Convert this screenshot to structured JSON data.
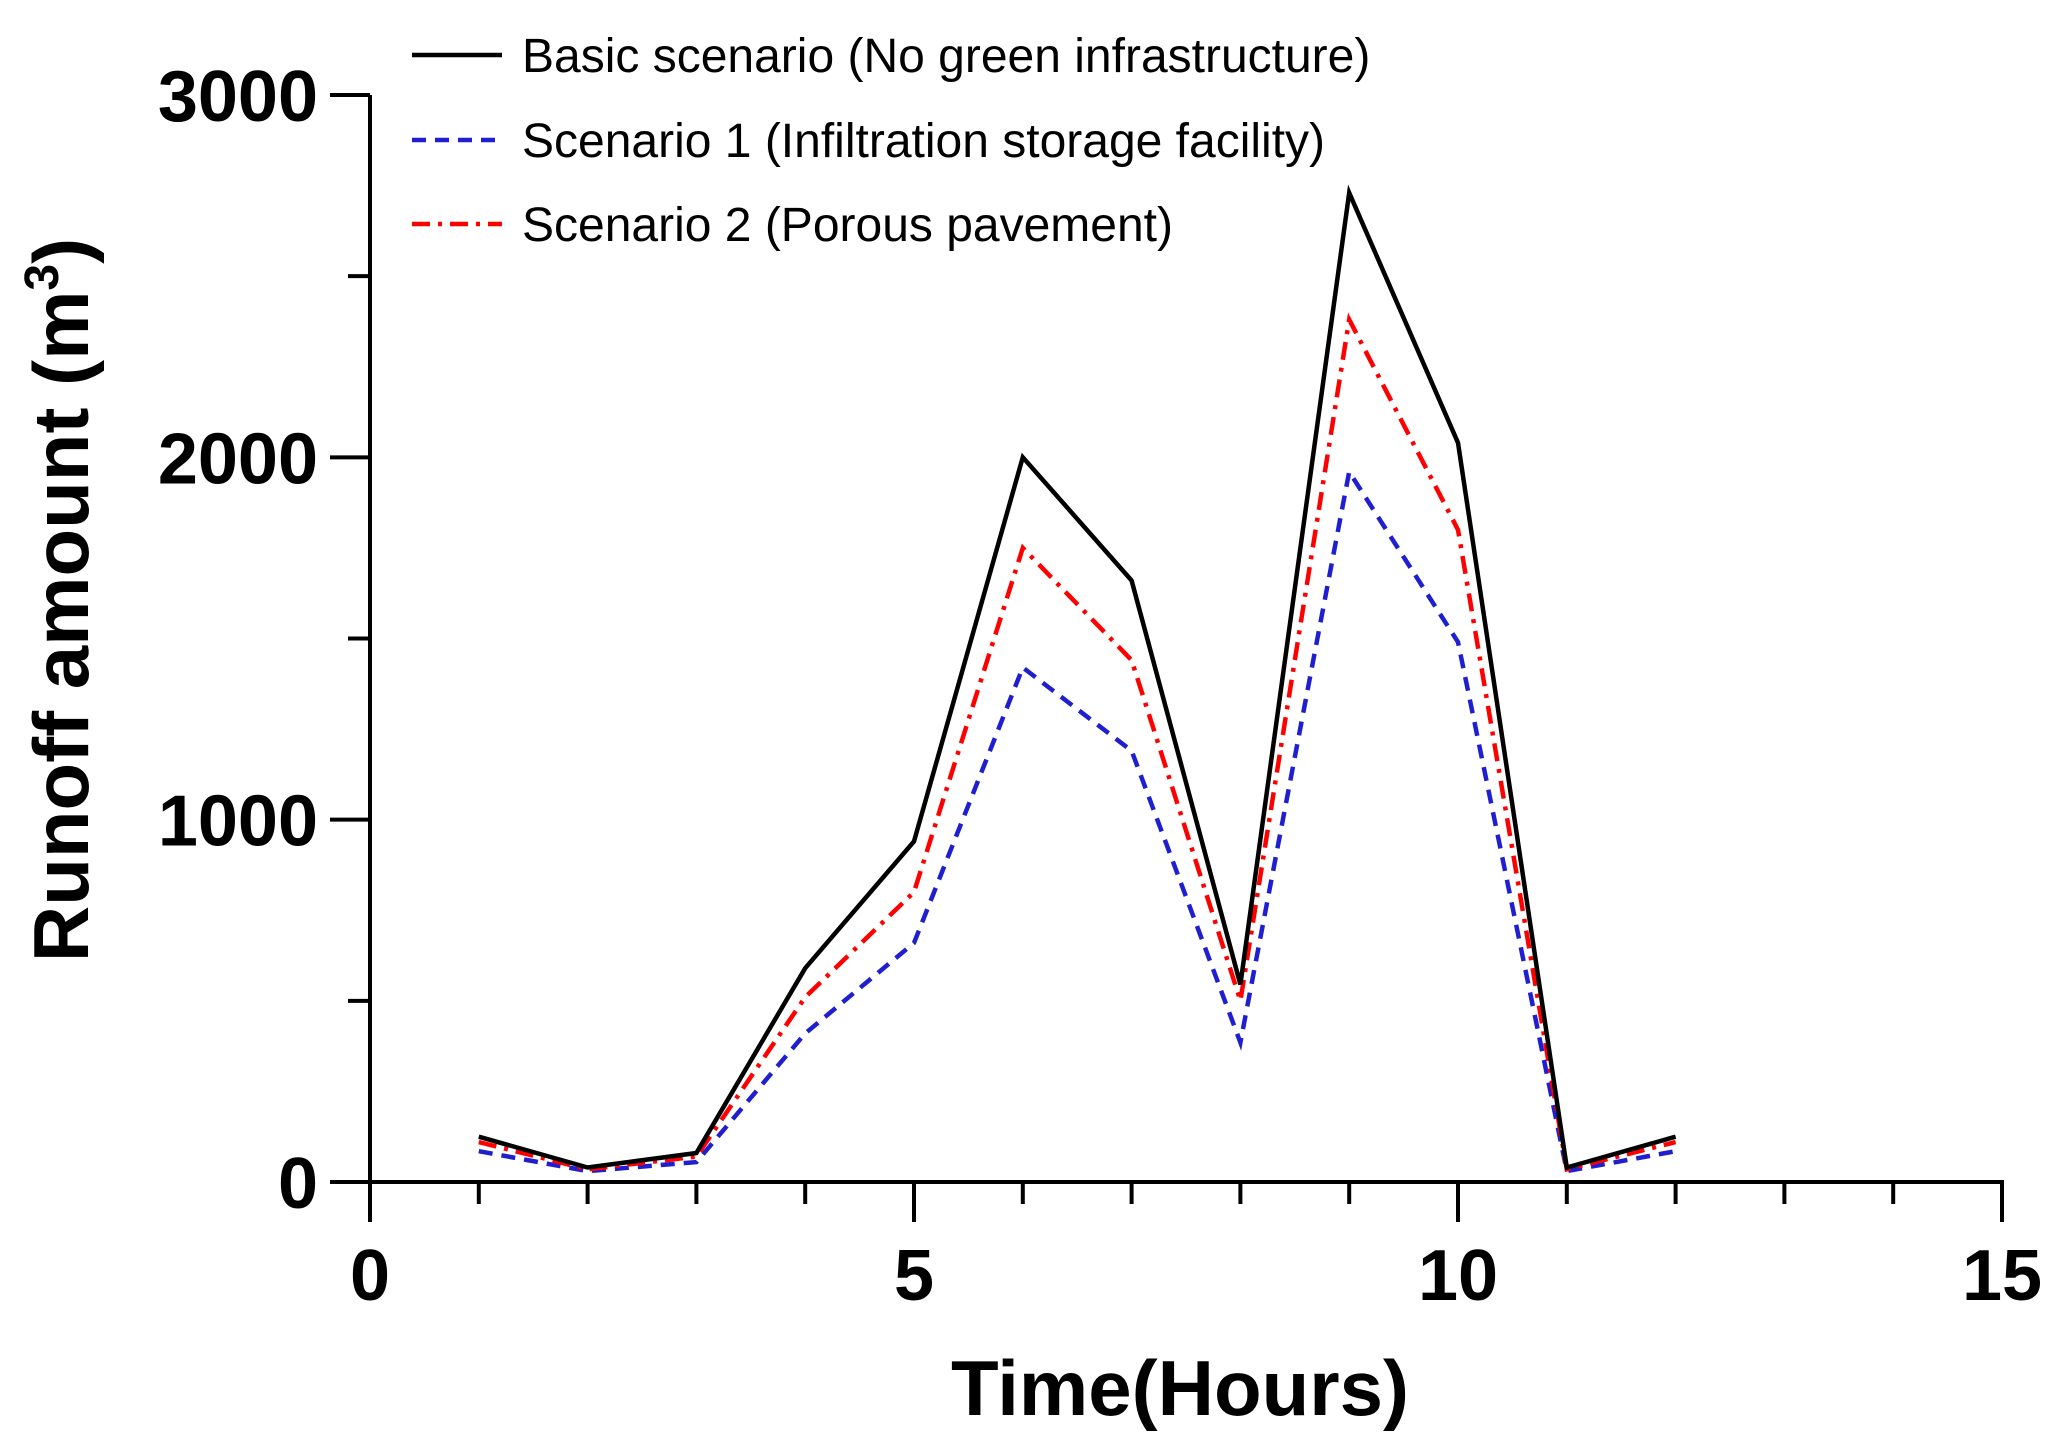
{
  "chart_data": {
    "type": "line",
    "title": "",
    "xlabel": "Time(Hours)",
    "ylabel_main": "Runoff amount (m",
    "ylabel_sup": "3",
    "ylabel_close": ")",
    "xlim": [
      0,
      15
    ],
    "ylim": [
      0,
      3000
    ],
    "xticks": [
      0,
      5,
      10,
      15
    ],
    "xtick_labels": [
      "0",
      "5",
      "10",
      "15"
    ],
    "yticks": [
      0,
      1000,
      2000,
      3000
    ],
    "ytick_labels": [
      "0",
      "1000",
      "2000",
      "3000"
    ],
    "grid": false,
    "legend_position": "top-left",
    "x": [
      1,
      2,
      3,
      4,
      5,
      6,
      7,
      8,
      9,
      10,
      11,
      12
    ],
    "series": [
      {
        "name": "Basic scenario (No green infrastructure)",
        "color": "#000000",
        "style": "solid",
        "values": [
          125,
          40,
          80,
          590,
          940,
          2000,
          1660,
          545,
          2730,
          2040,
          40,
          125
        ]
      },
      {
        "name": "Scenario 1 (Infiltration storage facility)",
        "color": "#1f1fd0",
        "style": "dashed",
        "values": [
          85,
          30,
          55,
          410,
          660,
          1420,
          1190,
          385,
          1960,
          1490,
          30,
          85
        ]
      },
      {
        "name": "Scenario 2 (Porous pavement)",
        "color": "#ff0000",
        "style": "dashdot",
        "values": [
          110,
          35,
          70,
          510,
          800,
          1750,
          1440,
          500,
          2380,
          1800,
          35,
          110
        ]
      }
    ]
  }
}
